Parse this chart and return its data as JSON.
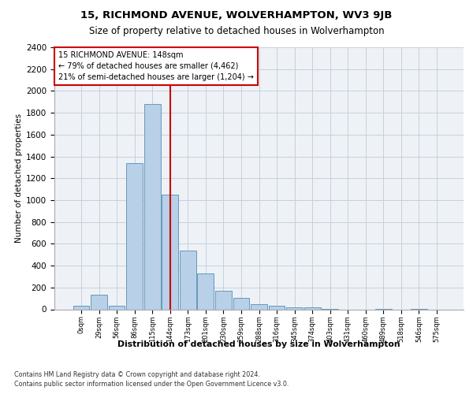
{
  "title_line1": "15, RICHMOND AVENUE, WOLVERHAMPTON, WV3 9JB",
  "title_line2": "Size of property relative to detached houses in Wolverhampton",
  "xlabel": "Distribution of detached houses by size in Wolverhampton",
  "ylabel": "Number of detached properties",
  "categories": [
    "0sqm",
    "29sqm",
    "56sqm",
    "86sqm",
    "115sqm",
    "144sqm",
    "173sqm",
    "201sqm",
    "230sqm",
    "259sqm",
    "288sqm",
    "316sqm",
    "345sqm",
    "374sqm",
    "403sqm",
    "431sqm",
    "460sqm",
    "489sqm",
    "518sqm",
    "546sqm",
    "575sqm"
  ],
  "values": [
    30,
    130,
    30,
    1340,
    1880,
    1050,
    540,
    330,
    170,
    105,
    50,
    30,
    20,
    15,
    5,
    0,
    0,
    5,
    0,
    5,
    0
  ],
  "bar_color": "#b8d0e8",
  "bar_edge_color": "#6699bb",
  "vline_x": 5,
  "vline_color": "#cc0000",
  "annotation_box_text": "15 RICHMOND AVENUE: 148sqm\n← 79% of detached houses are smaller (4,462)\n21% of semi-detached houses are larger (1,204) →",
  "annotation_box_color": "#cc0000",
  "ylim": [
    0,
    2400
  ],
  "yticks": [
    0,
    200,
    400,
    600,
    800,
    1000,
    1200,
    1400,
    1600,
    1800,
    2000,
    2200,
    2400
  ],
  "footnote1": "Contains HM Land Registry data © Crown copyright and database right 2024.",
  "footnote2": "Contains public sector information licensed under the Open Government Licence v3.0.",
  "bg_color": "#eef2f7",
  "grid_color": "#c5d0dc"
}
